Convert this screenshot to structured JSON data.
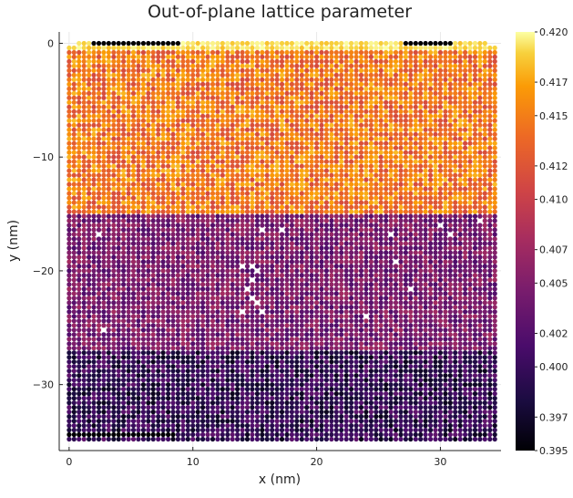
{
  "chart_data": {
    "type": "heatmap",
    "title": "Out-of-plane lattice parameter",
    "xlabel": "x (nm)",
    "ylabel": "y (nm)",
    "xlim": [
      -0.8,
      34.9
    ],
    "ylim": [
      -35.8,
      1.0
    ],
    "x_ticks": [
      0,
      10,
      20,
      30
    ],
    "x_tick_labels": [
      "0",
      "10",
      "20",
      "30"
    ],
    "y_ticks": [
      0,
      -10,
      -20,
      -30
    ],
    "y_tick_labels": [
      "0",
      "−10",
      "−20",
      "−30"
    ],
    "grid": true,
    "colormap": "inferno",
    "colorbar": {
      "min": 0.395,
      "max": 0.42,
      "ticks": [
        0.395,
        0.397,
        0.4,
        0.402,
        0.405,
        0.407,
        0.41,
        0.412,
        0.415,
        0.417,
        0.42
      ],
      "tick_labels": [
        "0.395",
        "0.397",
        "0.400",
        "0.402",
        "0.405",
        "0.407",
        "0.410",
        "0.412",
        "0.415",
        "0.417",
        "0.420"
      ]
    },
    "grid_spacing_nm": 0.4,
    "x_range": [
      0.0,
      34.4
    ],
    "y_range": [
      -34.8,
      0.0
    ],
    "regions": [
      {
        "y_from": 0.0,
        "y_to": -0.6,
        "value": 0.419,
        "note": "bright top edge rows"
      },
      {
        "y_from": -0.6,
        "y_to": -14.8,
        "value": 0.4145,
        "spread": 0.0035
      },
      {
        "y_from": -14.8,
        "y_to": -26.8,
        "value": 0.4045,
        "spread": 0.003
      },
      {
        "y_from": -26.8,
        "y_to": -34.8,
        "value": 0.3995,
        "spread": 0.0035
      }
    ],
    "dark_patches": [
      {
        "x": [
          1.8,
          8.8
        ],
        "y": [
          0.0,
          -0.3
        ],
        "value": 0.395
      },
      {
        "x": [
          27.0,
          31.0
        ],
        "y": [
          0.0,
          -0.3
        ],
        "value": 0.395
      },
      {
        "x": [
          0.0,
          8.5
        ],
        "y": [
          -34.4,
          -34.8
        ],
        "value": 0.395
      }
    ],
    "missing_points": [
      [
        2.5,
        -17.0
      ],
      [
        2.8,
        -25.2
      ],
      [
        14.0,
        -19.8
      ],
      [
        14.8,
        -19.6
      ],
      [
        15.2,
        -20.0
      ],
      [
        14.6,
        -20.8
      ],
      [
        14.5,
        -21.6
      ],
      [
        14.8,
        -22.4
      ],
      [
        15.0,
        -23.0
      ],
      [
        14.1,
        -23.8
      ],
      [
        15.6,
        -23.6
      ],
      [
        15.4,
        -16.6
      ],
      [
        17.0,
        -16.6
      ],
      [
        25.8,
        -16.8
      ],
      [
        26.2,
        -19.2
      ],
      [
        27.6,
        -21.5
      ],
      [
        23.8,
        -24.2
      ],
      [
        30.0,
        -16.2
      ],
      [
        30.8,
        -16.8
      ],
      [
        33.4,
        -15.6
      ]
    ]
  }
}
